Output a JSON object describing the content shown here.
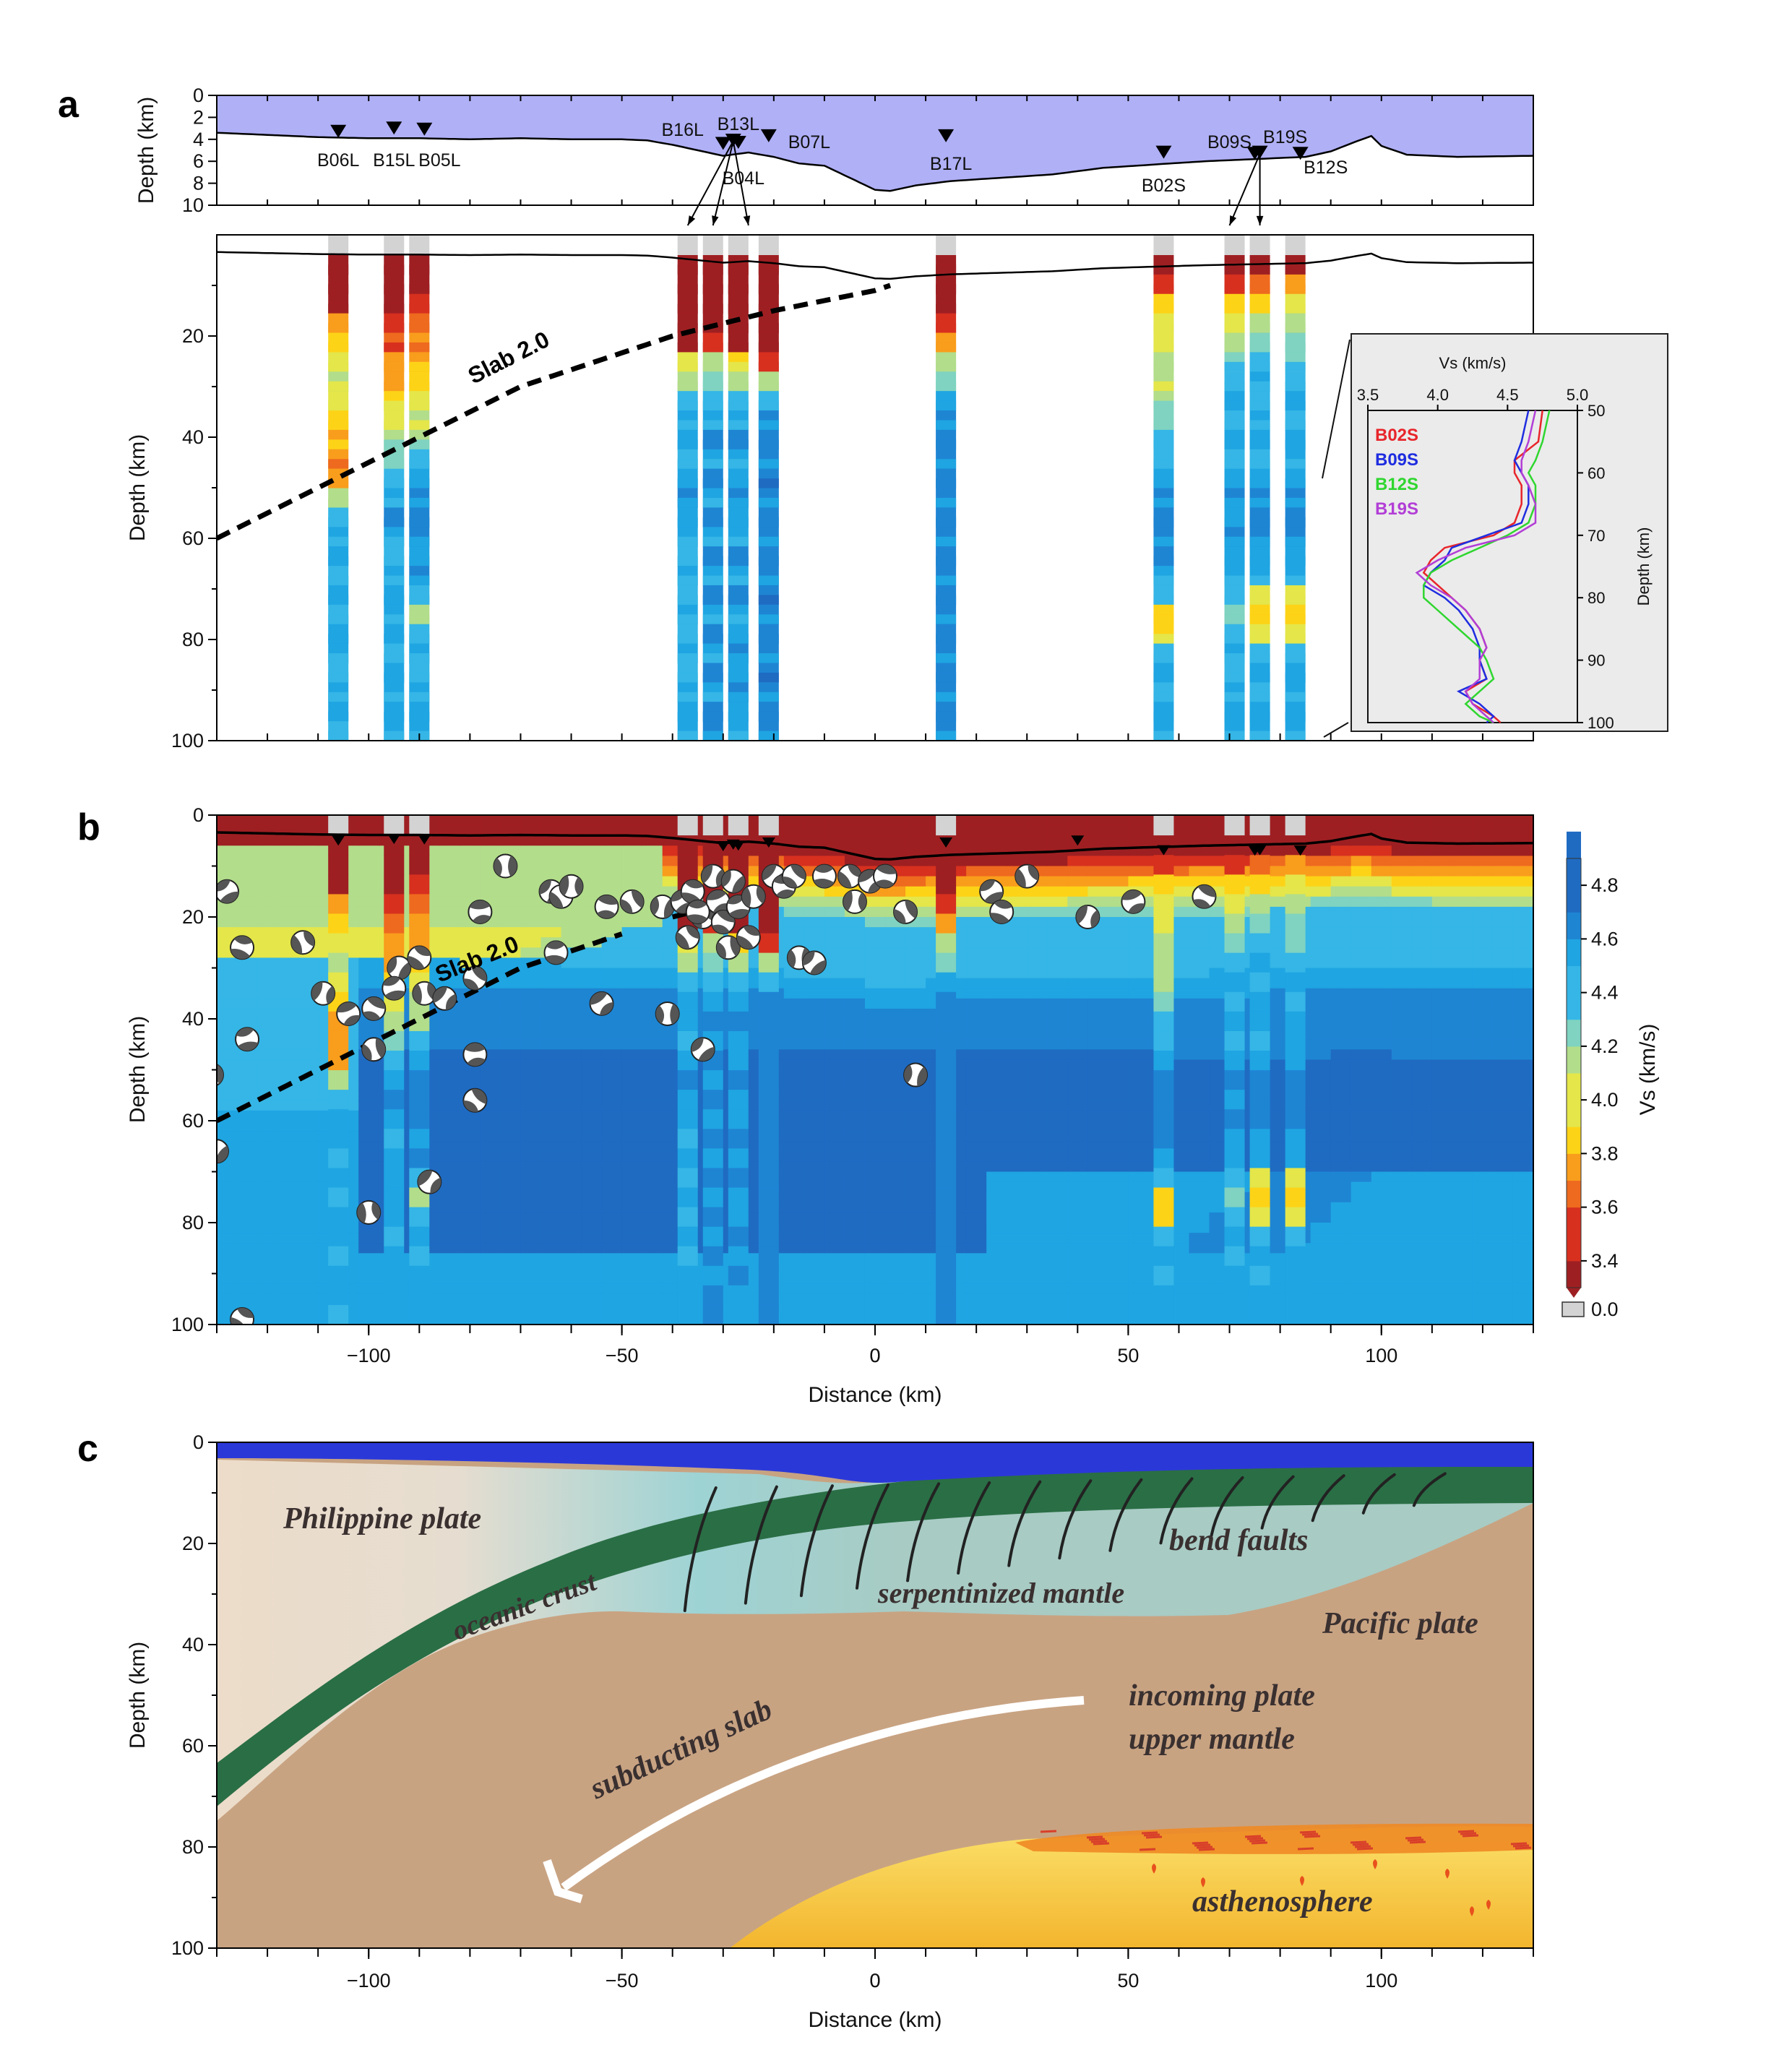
{
  "panels": {
    "a": "a",
    "b": "b",
    "c": "c"
  },
  "colors": {
    "water": "#b0b0f7",
    "slab_line": "#000000",
    "seafloor_line": "#000000",
    "nodata_gray": "#d3d3d3",
    "vs_palette": [
      "#9e1f22",
      "#d7301f",
      "#ee6a1f",
      "#f99d1c",
      "#fdd317",
      "#e4e64a",
      "#b2dd8b",
      "#7fd3c0",
      "#35b6e6",
      "#1fa5e2",
      "#1e85d3",
      "#1f6bc2"
    ],
    "inset_lines": {
      "B02S": "#e8252b",
      "B09S": "#1f2de0",
      "B12S": "#2fd62f",
      "B19S": "#b23ed6"
    },
    "section_c": {
      "ocean": "#2b38d8",
      "philippine": "#ecdcc9",
      "serpentinized": "#a8cbc4",
      "oceanic_crust": "#2a6e45",
      "mantle": "#c8a382",
      "asthenosphere": "#f6c23a",
      "melt": "#ee8a24",
      "arrow": "#ffffff",
      "faults": "#222222"
    }
  },
  "chart_data": [
    {
      "panel": "a-top",
      "type": "line",
      "title": "",
      "xlabel": "",
      "ylabel": "Depth (km)",
      "xlim": [
        -130,
        130
      ],
      "ylim": [
        10,
        0
      ],
      "yticks": [
        0,
        2,
        4,
        6,
        8,
        10
      ],
      "series": [
        {
          "x": [
            -130,
            -120,
            -110,
            -100,
            -90,
            -80,
            -70,
            -60,
            -50,
            -45,
            -40,
            -35,
            -30,
            -25,
            -20,
            -15,
            -10,
            -5,
            0,
            3,
            8,
            15,
            25,
            35,
            45,
            55,
            65,
            75,
            85,
            90,
            95,
            98,
            100,
            105,
            115,
            130
          ],
          "y": [
            3.4,
            3.6,
            3.8,
            3.9,
            3.9,
            4.0,
            3.9,
            4.0,
            4.0,
            4.1,
            4.5,
            5.0,
            5.5,
            5.2,
            5.6,
            6.2,
            6.4,
            7.5,
            8.6,
            8.7,
            8.2,
            7.8,
            7.5,
            7.2,
            6.6,
            6.3,
            6.0,
            5.8,
            5.6,
            5.1,
            4.2,
            3.7,
            4.6,
            5.4,
            5.6,
            5.5
          ]
        }
      ],
      "stations": [
        {
          "name": "B06L",
          "x": -106,
          "depth": 4.0
        },
        {
          "name": "B15L",
          "x": -95,
          "depth": 3.7
        },
        {
          "name": "B05L",
          "x": -89,
          "depth": 3.8
        },
        {
          "name": "B16L",
          "x": -30,
          "depth": 5.1
        },
        {
          "name": "B13L",
          "x": -28,
          "depth": 4.8
        },
        {
          "name": "B04L",
          "x": -27,
          "depth": 5.0
        },
        {
          "name": "B07L",
          "x": -21,
          "depth": 4.4
        },
        {
          "name": "B17L",
          "x": 14,
          "depth": 4.4
        },
        {
          "name": "B02S",
          "x": 57,
          "depth": 5.9
        },
        {
          "name": "B09S",
          "x": 75,
          "depth": 6.0
        },
        {
          "name": "B19S",
          "x": 76,
          "depth": 5.9
        },
        {
          "name": "B12S",
          "x": 84,
          "depth": 6.0
        }
      ]
    },
    {
      "panel": "a",
      "type": "heatmap",
      "xlabel": "",
      "ylabel": "Depth (km)",
      "xlim": [
        -130,
        130
      ],
      "ylim": [
        100,
        0
      ],
      "yticks": [
        20,
        40,
        60,
        80,
        100
      ],
      "slab_label": "Slab 2.0",
      "slab2": {
        "x": [
          -130,
          -100,
          -70,
          -40,
          -20,
          0,
          3
        ],
        "depth": [
          60,
          45,
          30,
          20,
          15,
          11,
          10
        ]
      },
      "columns": [
        {
          "x": -106,
          "vs": [
            3.3,
            3.3,
            3.3,
            3.7,
            3.9,
            4.0,
            4.1,
            4.0,
            3.9,
            3.8,
            3.7,
            3.7,
            4.2,
            4.4,
            4.5,
            4.5,
            4.4,
            4.5,
            4.4,
            4.5,
            4.5,
            4.4,
            4.5,
            4.5,
            4.4
          ]
        },
        {
          "x": -95,
          "vs": [
            3.3,
            3.3,
            3.4,
            3.5,
            3.6,
            3.7,
            3.8,
            3.9,
            4.0,
            4.2,
            4.3,
            4.4,
            4.5,
            4.6,
            4.5,
            4.4,
            4.5,
            4.5,
            4.5,
            4.5,
            4.4,
            4.5,
            4.5,
            4.5,
            4.5
          ]
        },
        {
          "x": -90,
          "vs": [
            3.3,
            3.3,
            3.5,
            3.6,
            3.7,
            3.8,
            3.9,
            4.0,
            4.1,
            4.2,
            4.4,
            4.5,
            4.6,
            4.6,
            4.6,
            4.5,
            4.6,
            4.4,
            4.2,
            4.4,
            4.5,
            4.4,
            4.5,
            4.5,
            4.5
          ]
        },
        {
          "x": -37,
          "vs": [
            3.3,
            3.3,
            3.3,
            3.3,
            3.4,
            4.0,
            4.2,
            4.4,
            4.5,
            4.5,
            4.4,
            4.5,
            4.6,
            4.5,
            4.5,
            4.4,
            4.5,
            4.4,
            4.5,
            4.4,
            4.5,
            4.4,
            4.5,
            4.5,
            4.5
          ]
        },
        {
          "x": -32,
          "vs": [
            3.3,
            3.3,
            3.3,
            3.3,
            3.5,
            4.1,
            4.3,
            4.4,
            4.5,
            4.6,
            4.5,
            4.6,
            4.5,
            4.6,
            4.5,
            4.6,
            4.5,
            4.6,
            4.5,
            4.6,
            4.5,
            4.6,
            4.5,
            4.6,
            4.6
          ]
        },
        {
          "x": -27,
          "vs": [
            3.3,
            3.3,
            3.3,
            3.3,
            3.4,
            3.9,
            4.2,
            4.4,
            4.5,
            4.6,
            4.5,
            4.5,
            4.6,
            4.5,
            4.5,
            4.6,
            4.5,
            4.6,
            4.5,
            4.5,
            4.6,
            4.5,
            4.6,
            4.5,
            4.5
          ]
        },
        {
          "x": -21,
          "vs": [
            3.3,
            3.3,
            3.3,
            3.3,
            3.3,
            3.5,
            4.2,
            4.4,
            4.6,
            4.6,
            4.6,
            4.7,
            4.6,
            4.6,
            4.6,
            4.6,
            4.6,
            4.7,
            4.6,
            4.6,
            4.6,
            4.7,
            4.6,
            4.6,
            4.6
          ]
        },
        {
          "x": 14,
          "vs": [
            3.3,
            3.3,
            3.3,
            3.5,
            3.8,
            4.1,
            4.3,
            4.5,
            4.6,
            4.6,
            4.6,
            4.6,
            4.6,
            4.6,
            4.6,
            4.6,
            4.6,
            4.6,
            4.6,
            4.6,
            4.6,
            4.6,
            4.6,
            4.6,
            4.6
          ]
        },
        {
          "x": 57,
          "vs": [
            3.3,
            3.5,
            3.9,
            4.0,
            4.0,
            4.1,
            4.1,
            4.2,
            4.3,
            4.4,
            4.4,
            4.5,
            4.6,
            4.6,
            4.6,
            4.6,
            4.5,
            4.4,
            3.9,
            3.9,
            4.4,
            4.5,
            4.4,
            4.5,
            4.5
          ]
        },
        {
          "x": 71,
          "vs": [
            3.3,
            3.5,
            3.9,
            4.0,
            4.2,
            4.3,
            4.4,
            4.5,
            4.4,
            4.5,
            4.4,
            4.5,
            4.6,
            4.5,
            4.6,
            4.5,
            4.5,
            4.4,
            4.3,
            4.4,
            4.5,
            4.4,
            4.5,
            4.5,
            4.5
          ]
        },
        {
          "x": 76,
          "vs": [
            3.3,
            3.6,
            3.9,
            4.1,
            4.3,
            4.4,
            4.5,
            4.4,
            4.5,
            4.5,
            4.4,
            4.5,
            4.6,
            4.6,
            4.6,
            4.5,
            4.5,
            4.0,
            3.9,
            4.0,
            4.4,
            4.5,
            4.4,
            4.5,
            4.5
          ]
        },
        {
          "x": 83,
          "vs": [
            3.4,
            3.7,
            4.0,
            4.1,
            4.3,
            4.3,
            4.4,
            4.5,
            4.4,
            4.5,
            4.5,
            4.5,
            4.6,
            4.6,
            4.6,
            4.5,
            4.5,
            4.0,
            3.9,
            4.0,
            4.4,
            4.5,
            4.5,
            4.5,
            4.5
          ]
        }
      ],
      "inset": {
        "type": "line",
        "title": "Vs (km/s)",
        "ylabel": "Depth (km)",
        "xlim": [
          3.5,
          5.0
        ],
        "ylim": [
          100,
          50
        ],
        "xticks": [
          3.5,
          4.0,
          4.5,
          5.0
        ],
        "yticks": [
          50,
          60,
          70,
          80,
          90,
          100
        ],
        "series": [
          {
            "name": "B02S",
            "depth": [
              50,
              55,
              58,
              60,
              62,
              65,
              68,
              70,
              72,
              74,
              76,
              78,
              80,
              82,
              85,
              88,
              90,
              93,
              95,
              97,
              99,
              100
            ],
            "vs": [
              4.75,
              4.72,
              4.55,
              4.55,
              4.6,
              4.6,
              4.55,
              4.4,
              4.05,
              3.95,
              3.9,
              4.0,
              4.1,
              4.2,
              4.3,
              4.35,
              4.3,
              4.35,
              4.2,
              4.25,
              4.4,
              4.45
            ]
          },
          {
            "name": "B09S",
            "depth": [
              50,
              55,
              58,
              60,
              62,
              65,
              68,
              70,
              72,
              74,
              76,
              78,
              80,
              82,
              85,
              88,
              90,
              93,
              95,
              97,
              99,
              100
            ],
            "vs": [
              4.65,
              4.6,
              4.55,
              4.6,
              4.65,
              4.65,
              4.6,
              4.35,
              4.1,
              4.05,
              3.95,
              3.9,
              4.05,
              4.15,
              4.25,
              4.3,
              4.3,
              4.35,
              4.15,
              4.3,
              4.4,
              4.35
            ]
          },
          {
            "name": "B12S",
            "depth": [
              50,
              55,
              58,
              60,
              62,
              65,
              68,
              70,
              72,
              74,
              76,
              78,
              80,
              82,
              85,
              88,
              90,
              93,
              95,
              97,
              99,
              100
            ],
            "vs": [
              4.8,
              4.75,
              4.7,
              4.65,
              4.7,
              4.7,
              4.65,
              4.5,
              4.3,
              4.1,
              3.95,
              3.9,
              3.9,
              4.0,
              4.15,
              4.3,
              4.35,
              4.4,
              4.3,
              4.2,
              4.3,
              4.4
            ]
          },
          {
            "name": "B19S",
            "depth": [
              50,
              55,
              58,
              60,
              62,
              65,
              68,
              70,
              72,
              74,
              76,
              78,
              80,
              82,
              85,
              88,
              90,
              93,
              95,
              97,
              99,
              100
            ],
            "vs": [
              4.7,
              4.65,
              4.6,
              4.6,
              4.65,
              4.7,
              4.7,
              4.55,
              4.2,
              4.0,
              3.85,
              3.95,
              4.1,
              4.2,
              4.3,
              4.35,
              4.3,
              4.3,
              4.2,
              4.25,
              4.35,
              4.4
            ]
          }
        ]
      }
    },
    {
      "panel": "b",
      "type": "heatmap",
      "xlabel": "Distance (km)",
      "ylabel": "Depth (km)",
      "xlim": [
        -130,
        130
      ],
      "ylim": [
        100,
        0
      ],
      "xticks": [
        -100,
        -50,
        0,
        50,
        100
      ],
      "yticks": [
        0,
        20,
        40,
        60,
        80,
        100
      ],
      "colorbar": {
        "label": "Vs (km/s)",
        "ticks": [
          4.8,
          4.6,
          4.4,
          4.2,
          4.0,
          3.8,
          3.6,
          3.4
        ],
        "nodata": "0.0"
      },
      "slab_label": "Slab 2.0",
      "events": [
        {
          "x": -128,
          "d": 15
        },
        {
          "x": -125,
          "d": 26
        },
        {
          "x": -113,
          "d": 25
        },
        {
          "x": -109,
          "d": 35
        },
        {
          "x": -104,
          "d": 39
        },
        {
          "x": -99,
          "d": 38
        },
        {
          "x": -99,
          "d": 46
        },
        {
          "x": -94,
          "d": 30
        },
        {
          "x": -95,
          "d": 34
        },
        {
          "x": -90,
          "d": 28
        },
        {
          "x": -89,
          "d": 35
        },
        {
          "x": -85,
          "d": 36
        },
        {
          "x": -78,
          "d": 19
        },
        {
          "x": -79,
          "d": 32
        },
        {
          "x": -73,
          "d": 10
        },
        {
          "x": -64,
          "d": 15
        },
        {
          "x": -63,
          "d": 27
        },
        {
          "x": -62,
          "d": 16
        },
        {
          "x": -60,
          "d": 14
        },
        {
          "x": -54,
          "d": 37
        },
        {
          "x": -53,
          "d": 18
        },
        {
          "x": -48,
          "d": 17
        },
        {
          "x": -42,
          "d": 18
        },
        {
          "x": -38,
          "d": 17
        },
        {
          "x": -36,
          "d": 15
        },
        {
          "x": -34,
          "d": 20
        },
        {
          "x": -32,
          "d": 12
        },
        {
          "x": -31,
          "d": 17
        },
        {
          "x": -30,
          "d": 21
        },
        {
          "x": -29,
          "d": 26
        },
        {
          "x": -28,
          "d": 13
        },
        {
          "x": -27,
          "d": 18
        },
        {
          "x": -25,
          "d": 24
        },
        {
          "x": -24,
          "d": 16
        },
        {
          "x": -20,
          "d": 12
        },
        {
          "x": -18,
          "d": 14
        },
        {
          "x": -16,
          "d": 12
        },
        {
          "x": -15,
          "d": 28
        },
        {
          "x": -12,
          "d": 29
        },
        {
          "x": -10,
          "d": 12
        },
        {
          "x": -5,
          "d": 12
        },
        {
          "x": -4,
          "d": 17
        },
        {
          "x": -1,
          "d": 13
        },
        {
          "x": 2,
          "d": 12
        },
        {
          "x": 6,
          "d": 19
        },
        {
          "x": 8,
          "d": 51
        },
        {
          "x": 23,
          "d": 15
        },
        {
          "x": 25,
          "d": 19
        },
        {
          "x": 30,
          "d": 12
        },
        {
          "x": 42,
          "d": 20
        },
        {
          "x": 51,
          "d": 17
        },
        {
          "x": 65,
          "d": 16
        },
        {
          "x": -131,
          "d": 51
        },
        {
          "x": -130,
          "d": 66
        },
        {
          "x": -124,
          "d": 44
        },
        {
          "x": -125,
          "d": 99
        },
        {
          "x": -100,
          "d": 78
        },
        {
          "x": -88,
          "d": 72
        },
        {
          "x": -79,
          "d": 47
        },
        {
          "x": -79,
          "d": 56
        },
        {
          "x": -41,
          "d": 39
        },
        {
          "x": -34,
          "d": 46
        },
        {
          "x": -35,
          "d": 19
        },
        {
          "x": -37,
          "d": 24
        }
      ]
    },
    {
      "panel": "c",
      "type": "diagram-section",
      "xlabel": "Distance (km)",
      "ylabel": "Depth (km)",
      "xlim": [
        -130,
        130
      ],
      "ylim": [
        100,
        0
      ],
      "xticks": [
        -100,
        -50,
        0,
        50,
        100
      ],
      "yticks": [
        0,
        20,
        40,
        60,
        80,
        100
      ]
    }
  ],
  "annotations_c": {
    "philippine": "Philippine plate",
    "oceanic_crust": "oceanic crust",
    "serpentinized": "serpentinized mantle",
    "bend_faults": "bend faults",
    "pacific": "Pacific plate",
    "incoming1": "incoming plate",
    "incoming2": "upper mantle",
    "subducting": "subducting slab",
    "asthenosphere": "asthenosphere"
  }
}
